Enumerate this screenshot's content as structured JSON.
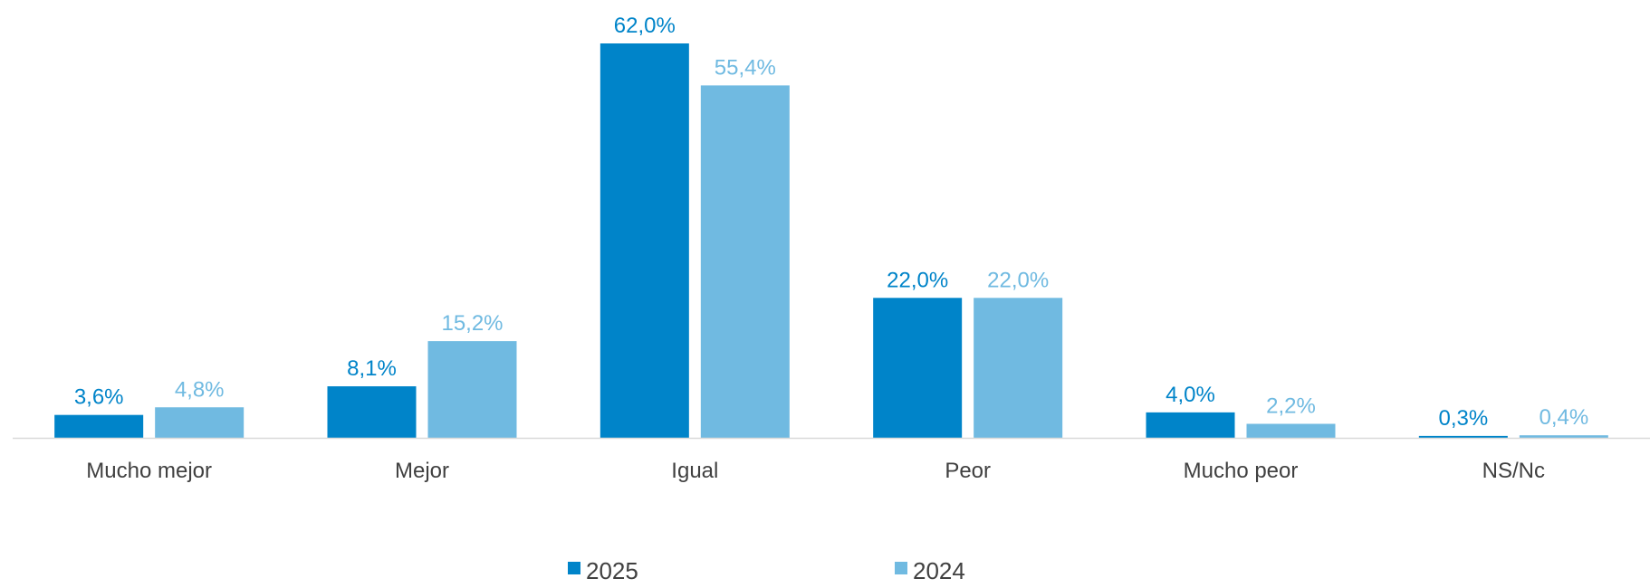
{
  "chart_data": {
    "type": "bar",
    "categories": [
      "Mucho mejor",
      "Mejor",
      "Igual",
      "Peor",
      "Mucho peor",
      "NS/Nc"
    ],
    "series": [
      {
        "name": "2025",
        "values": [
          3.6,
          8.1,
          62.0,
          22.0,
          4.0,
          0.3
        ],
        "labels": [
          "3,6%",
          "8,1%",
          "62,0%",
          "22,0%",
          "4,0%",
          "0,3%"
        ],
        "color": "#0084C9"
      },
      {
        "name": "2024",
        "values": [
          4.8,
          15.2,
          55.4,
          22.0,
          2.2,
          0.4
        ],
        "labels": [
          "4,8%",
          "15,2%",
          "55,4%",
          "22,0%",
          "2,2%",
          "0,4%"
        ],
        "color": "#70BAE1"
      }
    ],
    "ylim": [
      0,
      62.0
    ],
    "grid": false,
    "legend_position": "bottom",
    "axis_color": "#D9D9D9",
    "category_label_color": "#404040",
    "title": "",
    "xlabel": "",
    "ylabel": ""
  }
}
